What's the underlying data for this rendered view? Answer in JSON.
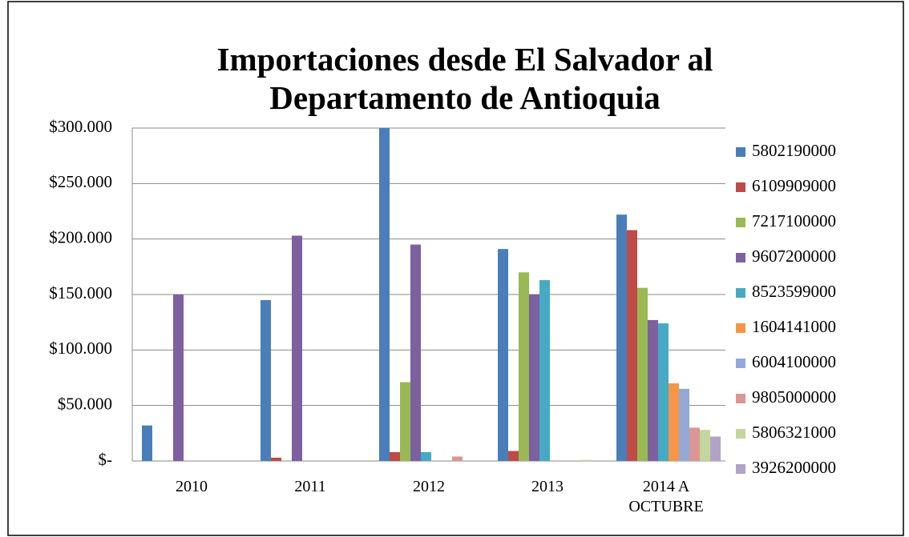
{
  "chart_data": {
    "type": "bar",
    "title": "Importaciones desde El Salvador al Departamento de Antioquia",
    "categories": [
      "2010",
      "2011",
      "2012",
      "2013",
      "2014 A OCTUBRE"
    ],
    "series": [
      {
        "name": "5802190000",
        "color": "#4a7ebb",
        "values": [
          32000,
          145000,
          300000,
          191000,
          222000
        ]
      },
      {
        "name": "6109909000",
        "color": "#be4b48",
        "values": [
          0,
          3000,
          8000,
          9000,
          208000
        ]
      },
      {
        "name": "7217100000",
        "color": "#98b954",
        "values": [
          0,
          0,
          71000,
          170000,
          156000
        ]
      },
      {
        "name": "9607200000",
        "color": "#7d60a0",
        "values": [
          150000,
          203000,
          195000,
          150000,
          127000
        ]
      },
      {
        "name": "8523599000",
        "color": "#46aac5",
        "values": [
          0,
          0,
          8000,
          163000,
          124000
        ]
      },
      {
        "name": "1604141000",
        "color": "#f79646",
        "values": [
          0,
          0,
          0,
          0,
          70000
        ]
      },
      {
        "name": "6004100000",
        "color": "#93a9d8",
        "values": [
          0,
          0,
          0,
          0,
          65000
        ]
      },
      {
        "name": "9805000000",
        "color": "#d99694",
        "values": [
          0,
          0,
          4000,
          0,
          30000
        ]
      },
      {
        "name": "5806321000",
        "color": "#c3d69b",
        "values": [
          0,
          0,
          0,
          1000,
          28000
        ]
      },
      {
        "name": "3926200000",
        "color": "#b3a2c7",
        "values": [
          0,
          0,
          0,
          0,
          22000
        ]
      }
    ],
    "ylim": [
      0,
      300000
    ],
    "yticks": [
      {
        "value": 0,
        "label": "$-"
      },
      {
        "value": 50000,
        "label": "$50.000"
      },
      {
        "value": 100000,
        "label": "$100.000"
      },
      {
        "value": 150000,
        "label": "$150.000"
      },
      {
        "value": 200000,
        "label": "$200.000"
      },
      {
        "value": 250000,
        "label": "$250.000"
      },
      {
        "value": 300000,
        "label": "$300.000"
      }
    ],
    "grid": true,
    "legend": "right"
  }
}
